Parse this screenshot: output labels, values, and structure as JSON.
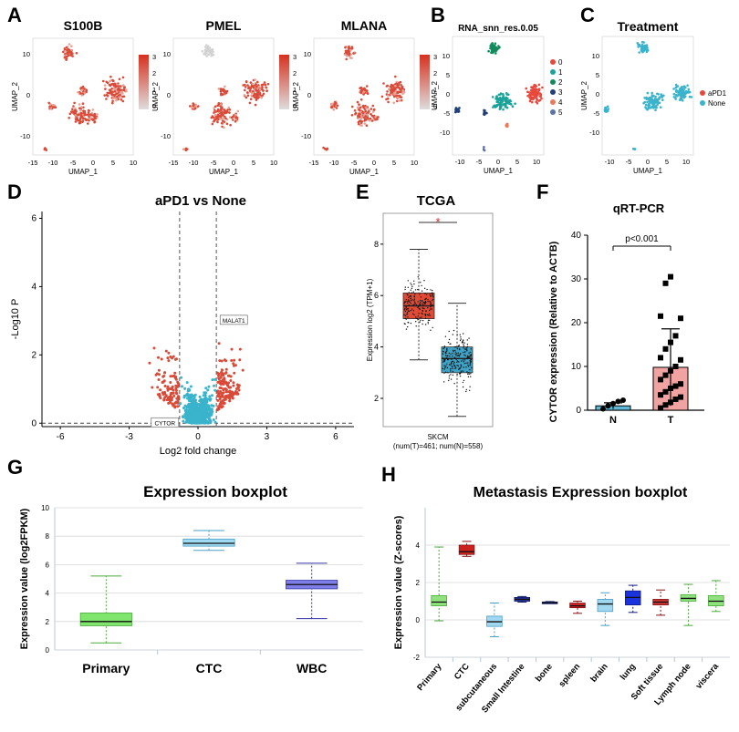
{
  "figure": {
    "panelA": {
      "letter": "A",
      "x_label": "UMAP_1",
      "y_label": "UMAP_2",
      "plots": [
        {
          "title": "S100B",
          "legend_ticks": [
            "3",
            "2",
            "1",
            "0"
          ]
        },
        {
          "title": "PMEL",
          "legend_ticks": [
            "3",
            "2",
            "1",
            "0"
          ]
        },
        {
          "title": "MLANA",
          "legend_ticks": [
            "3",
            "2",
            "1",
            "0"
          ]
        }
      ],
      "x_ticks": [
        "-15",
        "-10",
        "-5",
        "0",
        "5",
        "10"
      ],
      "y_ticks": [
        "10",
        "0",
        "-10"
      ]
    },
    "panelB": {
      "letter": "B",
      "title": "RNA_snn_res.0.05",
      "x_label": "UMAP_1",
      "y_label": "UMAP_2",
      "x_ticks": [
        "-10",
        "-5",
        "0",
        "5",
        "10"
      ],
      "y_ticks": [
        "10",
        "5",
        "0",
        "-5",
        "-10"
      ],
      "legend": [
        {
          "label": "0",
          "color": "#e8483c"
        },
        {
          "label": "1",
          "color": "#1aa39a"
        },
        {
          "label": "2",
          "color": "#138a5c"
        },
        {
          "label": "3",
          "color": "#1f3e7a"
        },
        {
          "label": "4",
          "color": "#e97a5a"
        },
        {
          "label": "5",
          "color": "#5a73a8"
        }
      ]
    },
    "panelC": {
      "letter": "C",
      "title": "Treatment",
      "x_label": "UMAP_1",
      "y_label": "UMAP_2",
      "x_ticks": [
        "-10",
        "-5",
        "0",
        "5",
        "10"
      ],
      "y_ticks": [
        "10",
        "5",
        "0",
        "-5",
        "-10"
      ],
      "legend": [
        {
          "label": "aPD1",
          "color": "#e8483c"
        },
        {
          "label": "None",
          "color": "#3ab3cc"
        }
      ]
    },
    "panelD": {
      "letter": "D",
      "title": "aPD1 vs None",
      "x_label": "Log2 fold change",
      "y_label": "-Log10 P",
      "annotations": [
        "MALAT1",
        "CYTOR"
      ]
    },
    "panelE": {
      "letter": "E",
      "title": "TCGA",
      "y_label": "Expression  log2 (TPM+1)",
      "x_category": "SKCM",
      "footnote": "(num(T)=461; num(N)=558)",
      "significance": "*"
    },
    "panelF": {
      "letter": "F",
      "title": "qRT-PCR",
      "y_label": "CYTOR expression (Relative to ACTB)",
      "pvalue": "p<0.001"
    },
    "panelG": {
      "letter": "G",
      "title": "Expression boxplot",
      "y_label": "Expression value (log2FPKM)"
    },
    "panelH": {
      "letter": "H",
      "title": "Metastasis Expression boxplot",
      "y_label": "Expression value (Z-scores)"
    }
  },
  "chart_data": [
    {
      "id": "D",
      "type": "scatter",
      "title": "aPD1 vs None",
      "xlabel": "Log2 fold change",
      "ylabel": "-Log10 P",
      "xlim": [
        -6.8,
        6.8
      ],
      "ylim": [
        -0.1,
        6.2
      ],
      "x_ticks": [
        -6,
        -3,
        0,
        3,
        6
      ],
      "y_ticks": [
        0,
        2,
        4,
        6
      ],
      "thresholds": {
        "fc": [
          -0.8,
          0.8
        ],
        "p": 0
      },
      "labeled_points": [
        {
          "label": "MALAT1",
          "x": 1.6,
          "y": 3.0
        },
        {
          "label": "CYTOR",
          "x": -1.4,
          "y": 0.0
        }
      ]
    },
    {
      "id": "E",
      "type": "box",
      "title": "TCGA",
      "categories": [
        "SKCM"
      ],
      "ylim": [
        0.9,
        9.2
      ],
      "y_ticks": [
        2,
        4,
        6,
        8
      ],
      "series": [
        {
          "name": "T",
          "color": "#e04b35",
          "n": 461,
          "q1": 5.1,
          "median": 5.6,
          "q3": 6.1,
          "whisker_low": 3.5,
          "whisker_high": 7.8
        },
        {
          "name": "N",
          "color": "#3fa3c6",
          "n": 558,
          "q1": 3.0,
          "median": 3.55,
          "q3": 4.0,
          "whisker_low": 1.3,
          "whisker_high": 5.7
        }
      ]
    },
    {
      "id": "F",
      "type": "bar",
      "title": "qRT-PCR",
      "categories": [
        "N",
        "T"
      ],
      "values": [
        1.0,
        9.8
      ],
      "errors": [
        0.7,
        8.8
      ],
      "ylim": [
        0,
        40
      ],
      "y_ticks": [
        0,
        10,
        20,
        30,
        40
      ],
      "colors": [
        "#5cb8d6",
        "#f0a3a0"
      ],
      "points": {
        "N": [
          0.3,
          1.0,
          1.5,
          2.0,
          2.3
        ],
        "T": [
          0.5,
          1.2,
          1.8,
          2.5,
          3.0,
          3.5,
          4.2,
          5.0,
          5.5,
          6.0,
          7.0,
          8.0,
          9.0,
          10.0,
          11.5,
          12.0,
          14.0,
          15.5,
          17.0,
          21.0,
          21.5,
          29.0,
          30.5
        ]
      },
      "pvalue": "p<0.001"
    },
    {
      "id": "G",
      "type": "box",
      "title": "Expression boxplot",
      "ylabel": "Expression value (log2FPKM)",
      "categories": [
        "Primary",
        "CTC",
        "WBC"
      ],
      "ylim": [
        0,
        10
      ],
      "y_ticks": [
        0,
        2,
        4,
        6,
        8,
        10
      ],
      "boxes": [
        {
          "q1": 1.7,
          "median": 2.0,
          "q3": 2.6,
          "low": 0.5,
          "high": 5.2,
          "fill": "#7fe56d",
          "stroke": "#4caa3c"
        },
        {
          "q1": 7.3,
          "median": 7.5,
          "q3": 7.8,
          "low": 7.0,
          "high": 8.4,
          "fill": "#9fdcf3",
          "stroke": "#4a9fc4"
        },
        {
          "q1": 4.3,
          "median": 4.6,
          "q3": 4.9,
          "low": 2.2,
          "high": 6.1,
          "fill": "#7f7ee8",
          "stroke": "#3333aa"
        }
      ]
    },
    {
      "id": "H",
      "type": "box",
      "title": "Metastasis Expression boxplot",
      "ylabel": "Expression value (Z-scores)",
      "categories": [
        "Primary",
        "CTC",
        "subcutaneous",
        "Small Intestine",
        "bone",
        "spleen",
        "brain",
        "lung",
        "Soft tissue",
        "Lymph node",
        "viscera"
      ],
      "ylim": [
        -2,
        6
      ],
      "y_ticks": [
        -2,
        0,
        2,
        4
      ],
      "boxes": [
        {
          "q1": 0.75,
          "median": 0.95,
          "q3": 1.3,
          "low": -0.05,
          "high": 3.9,
          "fill": "#8fe27d",
          "stroke": "#4caa3c"
        },
        {
          "q1": 3.5,
          "median": 3.65,
          "q3": 4.0,
          "low": 3.4,
          "high": 4.2,
          "fill": "#cc2222",
          "stroke": "#881111"
        },
        {
          "q1": -0.35,
          "median": -0.1,
          "q3": 0.2,
          "low": -0.9,
          "high": 0.9,
          "fill": "#9fd8f0",
          "stroke": "#4a9fc4"
        },
        {
          "q1": 1.0,
          "median": 1.1,
          "q3": 1.2,
          "low": 0.95,
          "high": 1.25,
          "fill": "#2233a0",
          "stroke": "#111a66"
        },
        {
          "q1": 0.9,
          "median": 0.92,
          "q3": 0.96,
          "low": 0.88,
          "high": 0.98,
          "fill": "#1a2a88",
          "stroke": "#111a66"
        },
        {
          "q1": 0.65,
          "median": 0.75,
          "q3": 0.9,
          "low": 0.35,
          "high": 1.0,
          "fill": "#cc2222",
          "stroke": "#881111"
        },
        {
          "q1": 0.45,
          "median": 0.85,
          "q3": 1.1,
          "low": -0.3,
          "high": 1.45,
          "fill": "#9fd8f0",
          "stroke": "#4a9fc4"
        },
        {
          "q1": 0.8,
          "median": 1.2,
          "q3": 1.55,
          "low": 0.4,
          "high": 1.85,
          "fill": "#1a33dd",
          "stroke": "#111a88"
        },
        {
          "q1": 0.8,
          "median": 0.95,
          "q3": 1.1,
          "low": 0.25,
          "high": 1.6,
          "fill": "#c83333",
          "stroke": "#881111"
        },
        {
          "q1": 1.0,
          "median": 1.15,
          "q3": 1.35,
          "low": -0.3,
          "high": 1.9,
          "fill": "#8fe27d",
          "stroke": "#4caa3c"
        },
        {
          "q1": 0.75,
          "median": 1.0,
          "q3": 1.3,
          "low": 0.45,
          "high": 2.1,
          "fill": "#8fe27d",
          "stroke": "#4caa3c"
        }
      ]
    }
  ]
}
